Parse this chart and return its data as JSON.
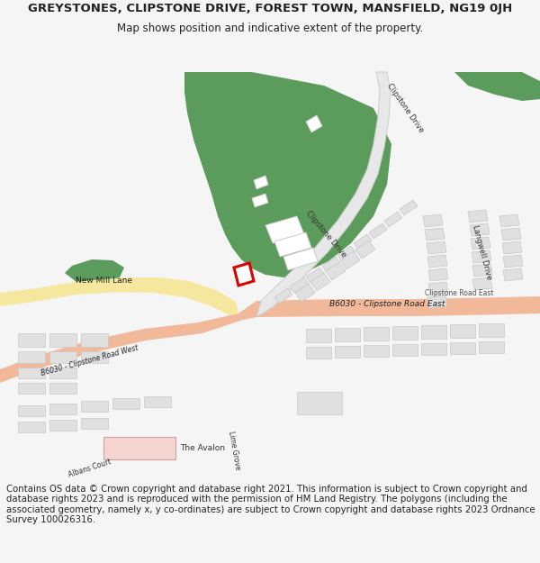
{
  "title_line1": "GREYSTONES, CLIPSTONE DRIVE, FOREST TOWN, MANSFIELD, NG19 0JH",
  "title_line2": "Map shows position and indicative extent of the property.",
  "footer_text": "Contains OS data © Crown copyright and database right 2021. This information is subject to Crown copyright and database rights 2023 and is reproduced with the permission of HM Land Registry. The polygons (including the associated geometry, namely x, y co-ordinates) are subject to Crown copyright and database rights 2023 Ordnance Survey 100026316.",
  "bg_color": "#f5f5f5",
  "map_bg": "#ffffff",
  "green_color": "#5b9b5b",
  "road_main_color": "#f2b89a",
  "road_secondary_color": "#f5e89e",
  "building_color": "#e0e0e0",
  "building_edge_color": "#c8c8c8",
  "property_edge_color": "#dd0000",
  "text_dark": "#222222",
  "title_fontsize": 9.5,
  "subtitle_fontsize": 8.5,
  "footer_fontsize": 7.3
}
